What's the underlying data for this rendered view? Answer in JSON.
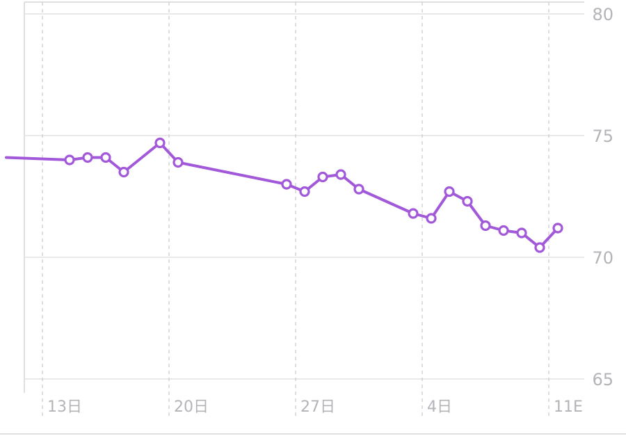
{
  "chart_data": {
    "type": "line",
    "title": "",
    "xlabel": "",
    "ylabel": "",
    "ylim": [
      65,
      80
    ],
    "yticks": [
      80,
      75,
      70,
      65
    ],
    "xlim": [
      11.0,
      41.7
    ],
    "xticks": [
      {
        "value": 13,
        "label": "13日"
      },
      {
        "value": 20,
        "label": "20日"
      },
      {
        "value": 27,
        "label": "27日"
      },
      {
        "value": 34,
        "label": "4日"
      },
      {
        "value": 41,
        "label": "11E"
      }
    ],
    "grid": true,
    "legend": "none",
    "series": [
      {
        "color": "#a259d9",
        "leading_line": {
          "x": 11.0,
          "y": 74.1
        },
        "x": [
          14.5,
          15.5,
          16.5,
          17.5,
          19.5,
          20.5,
          26.5,
          27.5,
          28.5,
          29.5,
          30.5,
          33.5,
          34.5,
          35.5,
          36.5,
          37.5,
          38.5,
          39.5,
          40.5,
          41.5
        ],
        "y": [
          74.0,
          74.1,
          74.1,
          73.5,
          74.7,
          73.9,
          73.0,
          72.7,
          73.3,
          73.4,
          72.8,
          71.8,
          71.6,
          72.7,
          72.3,
          71.3,
          71.1,
          71.0,
          70.4,
          71.2
        ]
      }
    ]
  }
}
